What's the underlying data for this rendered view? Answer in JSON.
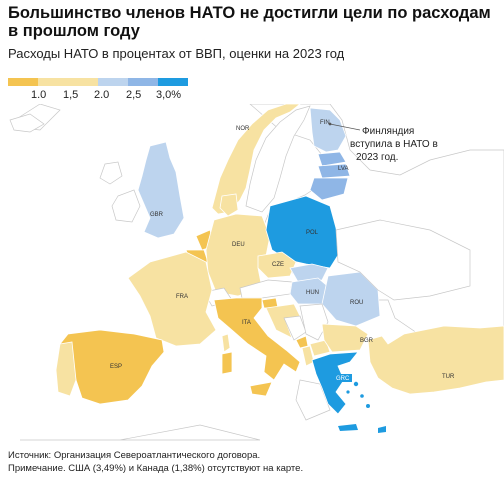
{
  "title": "Большинство членов НАТО не достигли цели по расходам в прошлом году",
  "subtitle": "Расходы НАТО в процентах от ВВП, оценки на 2023 год",
  "legend": {
    "colors": [
      "#f4c451",
      "#f7e2a2",
      "#f7e2a2",
      "#bdd4ee",
      "#8fb6e6",
      "#1e9be0"
    ],
    "labels": [
      "1.0",
      "1,5",
      "2.0",
      "2,5",
      "3,0%"
    ]
  },
  "map": {
    "countries": {
      "NOR": "NOR",
      "FIN": "FIN",
      "LVA": "LVA",
      "GBR": "GBR",
      "POL": "POL",
      "DEU": "DEU",
      "CZE": "CZE",
      "FRA": "FRA",
      "HUN": "HUN",
      "ROU": "ROU",
      "ITA": "ITA",
      "BGR": "BGR",
      "ESP": "ESP",
      "TUR": "TUR",
      "GRC": "GRC"
    },
    "annotation": [
      "Финляндия",
      "вступила в НАТО в",
      "2023 год."
    ]
  },
  "source": {
    "line1": "Источник: Организация Североатлантического договора.",
    "line2": "Примечание. США (3,49%) и Канада (1,38%) отсутствуют на карте."
  }
}
